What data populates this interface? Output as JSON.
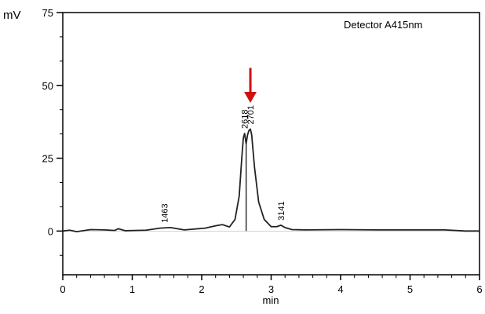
{
  "chart_data": {
    "type": "line",
    "y_unit": "mV",
    "xlabel": "min",
    "ylabel": "",
    "detector_label": "Detector A415nm",
    "xlim": [
      0,
      6
    ],
    "ylim": [
      -15,
      75
    ],
    "x_ticks": [
      0,
      1,
      2,
      3,
      4,
      5,
      6
    ],
    "y_ticks": [
      0,
      25,
      50,
      75
    ],
    "x_tick_labels": [
      "0",
      "1",
      "2",
      "3",
      "4",
      "5",
      "6"
    ],
    "y_tick_labels": [
      "0",
      "25",
      "50",
      "75"
    ],
    "grid": false,
    "colors": {
      "trace": "#222222",
      "arrow": "#cc1111",
      "frame": "#000000"
    },
    "series": [
      {
        "x": [
          0,
          0.1,
          0.2,
          0.4,
          0.6,
          0.75,
          0.8,
          0.9,
          1.2,
          1.4,
          1.55,
          1.75,
          1.9,
          2.05,
          2.2,
          2.3,
          2.4,
          2.48,
          2.54,
          2.58,
          2.6,
          2.618,
          2.64,
          2.66,
          2.68,
          2.701,
          2.72,
          2.76,
          2.82,
          2.9,
          3.0,
          3.08,
          3.141,
          3.2,
          3.3,
          3.5,
          4.0,
          4.5,
          5.0,
          5.5,
          5.8,
          6.0
        ],
        "y": [
          0,
          0.3,
          -0.2,
          0.5,
          0.4,
          0.2,
          0.8,
          0.1,
          0.3,
          1.0,
          1.2,
          0.4,
          0.7,
          1.0,
          1.8,
          2.2,
          1.4,
          4.0,
          12.0,
          26.0,
          32.0,
          33.5,
          30.0,
          33.0,
          34.5,
          35.0,
          33.0,
          22.0,
          10.0,
          4.0,
          1.5,
          1.5,
          2.0,
          1.2,
          0.5,
          0.4,
          0.5,
          0.4,
          0.4,
          0.4,
          0.0,
          0.0
        ]
      }
    ],
    "peak_labels": [
      {
        "text": "1463",
        "x": 1.463,
        "y": 1.2
      },
      {
        "text": "2618",
        "x": 2.618,
        "y": 33.5
      },
      {
        "text": "2701",
        "x": 2.701,
        "y": 35.0
      },
      {
        "text": "3141",
        "x": 3.141,
        "y": 2.0
      }
    ],
    "arrow": {
      "x": 2.701,
      "y_top": 56,
      "y_tip": 44
    }
  }
}
